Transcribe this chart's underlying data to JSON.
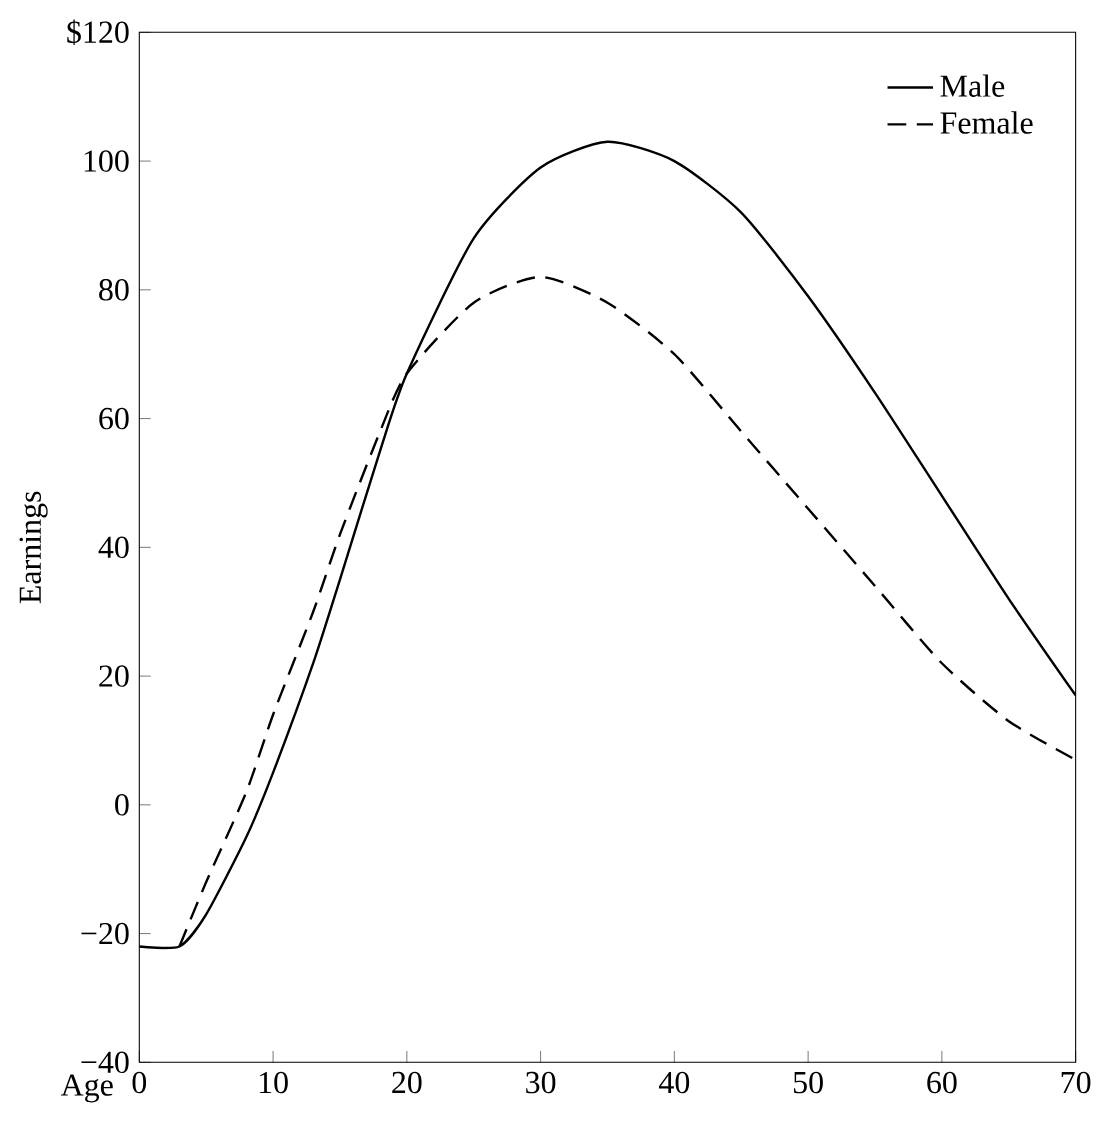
{
  "chart_data": {
    "type": "line",
    "xlabel": "Age",
    "ylabel": "Earnings",
    "xlim": [
      0,
      70
    ],
    "ylim": [
      -40,
      120
    ],
    "xticks": [
      0,
      10,
      20,
      30,
      40,
      50,
      60,
      70
    ],
    "yticks": [
      {
        "value": -40,
        "label": "−40"
      },
      {
        "value": -20,
        "label": "−20"
      },
      0,
      20,
      40,
      60,
      80,
      100,
      {
        "value": 120,
        "label": "$120"
      }
    ],
    "grid": false,
    "legend": "top right",
    "marker": "none",
    "series": [
      {
        "name": "Male",
        "color": "#000000",
        "line_style": "solid",
        "x": [
          0,
          3,
          5,
          8,
          10,
          13,
          15,
          18,
          20,
          25,
          30,
          35,
          40,
          45,
          50,
          55,
          60,
          65,
          70
        ],
        "values": [
          -22,
          -22,
          -17,
          -5,
          5,
          22,
          35,
          55,
          67,
          88,
          99,
          103,
          100,
          92,
          79,
          64,
          48,
          32,
          17
        ]
      },
      {
        "name": "Female",
        "color": "#000000",
        "line_style": "dashed",
        "x": [
          3,
          5,
          8,
          10,
          13,
          15,
          18,
          20,
          25,
          30,
          35,
          40,
          45,
          50,
          55,
          60,
          65,
          70
        ],
        "values": [
          -22,
          -12,
          2,
          14,
          30,
          42,
          58,
          67,
          78,
          82,
          78,
          70,
          58,
          46,
          34,
          22,
          13,
          7
        ]
      }
    ]
  }
}
